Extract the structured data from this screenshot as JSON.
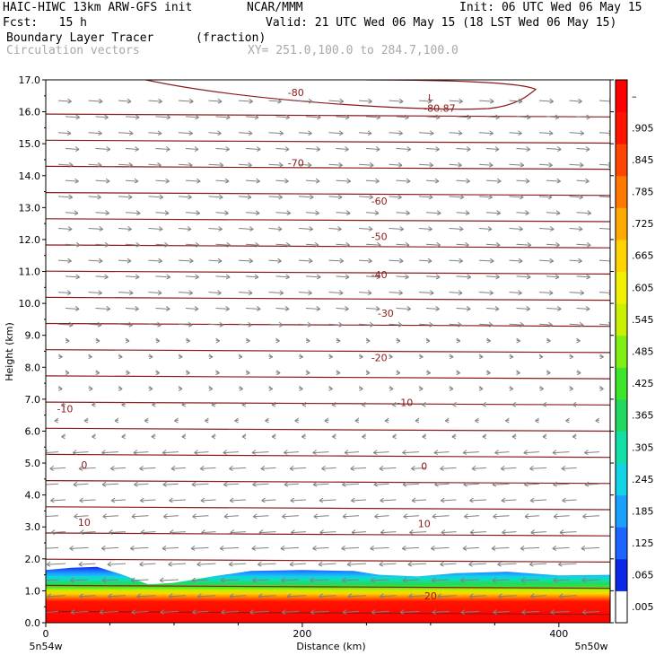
{
  "header": {
    "model": "HAIC-HIWC 13km ARW-GFS init",
    "org": "NCAR/MMM",
    "init": "Init: 06 UTC Wed 06 May 15",
    "fcst": "Fcst:   15 h",
    "valid": "Valid: 21 UTC Wed 06 May 15 (18 LST Wed 06 May 15)",
    "field": "Boundary Layer Tracer",
    "units": "(fraction)",
    "vectors": "Circulation vectors",
    "xy": "XY= 251.0,100.0 to 284.7,100.0"
  },
  "chart_data": {
    "type": "heatmap",
    "title": "Boundary Layer Tracer",
    "ylabel": "Height (km)",
    "xlabel": "Distance (km)",
    "xlim": [
      0,
      440
    ],
    "ylim": [
      0,
      17
    ],
    "yticks": [
      "0.0",
      "1.0",
      "2.0",
      "3.0",
      "4.0",
      "5.0",
      "6.0",
      "7.0",
      "8.0",
      "9.0",
      "10.0",
      "11.0",
      "12.0",
      "13.0",
      "14.0",
      "15.0",
      "16.0",
      "17.0"
    ],
    "xticks": [
      "0",
      "200",
      "400"
    ],
    "x_end_labels": [
      "5n54w",
      "5n50w"
    ],
    "colorbar": {
      "labels": [
        ".005",
        ".065",
        ".125",
        ".185",
        ".245",
        ".305",
        ".365",
        ".425",
        ".485",
        ".545",
        ".605",
        ".665",
        ".725",
        ".785",
        ".845",
        ".905",
        "–"
      ],
      "colors": [
        "#ffffff",
        "#0a28e6",
        "#1e64ff",
        "#1aa0ff",
        "#12d2e6",
        "#10e0a8",
        "#22d860",
        "#3ce628",
        "#80f014",
        "#c8f000",
        "#f0f000",
        "#ffd200",
        "#ffaa00",
        "#ff7800",
        "#ff4600",
        "#ff1400",
        "#ff0000"
      ]
    },
    "pbl_top_km": [
      {
        "x": 0,
        "z": 1.65
      },
      {
        "x": 20,
        "z": 1.72
      },
      {
        "x": 40,
        "z": 1.75
      },
      {
        "x": 60,
        "z": 1.5
      },
      {
        "x": 80,
        "z": 1.2
      },
      {
        "x": 100,
        "z": 1.25
      },
      {
        "x": 130,
        "z": 1.45
      },
      {
        "x": 160,
        "z": 1.62
      },
      {
        "x": 200,
        "z": 1.65
      },
      {
        "x": 240,
        "z": 1.62
      },
      {
        "x": 260,
        "z": 1.5
      },
      {
        "x": 290,
        "z": 1.45
      },
      {
        "x": 320,
        "z": 1.55
      },
      {
        "x": 360,
        "z": 1.6
      },
      {
        "x": 400,
        "z": 1.48
      },
      {
        "x": 440,
        "z": 1.5
      }
    ],
    "isotherm_labels": [
      {
        "value": "-80",
        "x": 195,
        "z": 16.6
      },
      {
        "value": "-70",
        "x": 195,
        "z": 14.4
      },
      {
        "value": "-60",
        "x": 260,
        "z": 13.2
      },
      {
        "value": "-50",
        "x": 260,
        "z": 12.1
      },
      {
        "value": "-40",
        "x": 260,
        "z": 10.9
      },
      {
        "value": "-30",
        "x": 265,
        "z": 9.7
      },
      {
        "value": "-20",
        "x": 260,
        "z": 8.3
      },
      {
        "value": "-10",
        "x": 15,
        "z": 6.7
      },
      {
        "value": "-10",
        "x": 280,
        "z": 6.9
      },
      {
        "value": "0",
        "x": 30,
        "z": 4.95
      },
      {
        "value": "0",
        "x": 295,
        "z": 4.9
      },
      {
        "value": "10",
        "x": 30,
        "z": 3.15
      },
      {
        "value": "10",
        "x": 295,
        "z": 3.1
      },
      {
        "value": "20",
        "x": 300,
        "z": 0.85
      }
    ],
    "max_label": {
      "text": "-80.87",
      "marker": "L"
    }
  }
}
